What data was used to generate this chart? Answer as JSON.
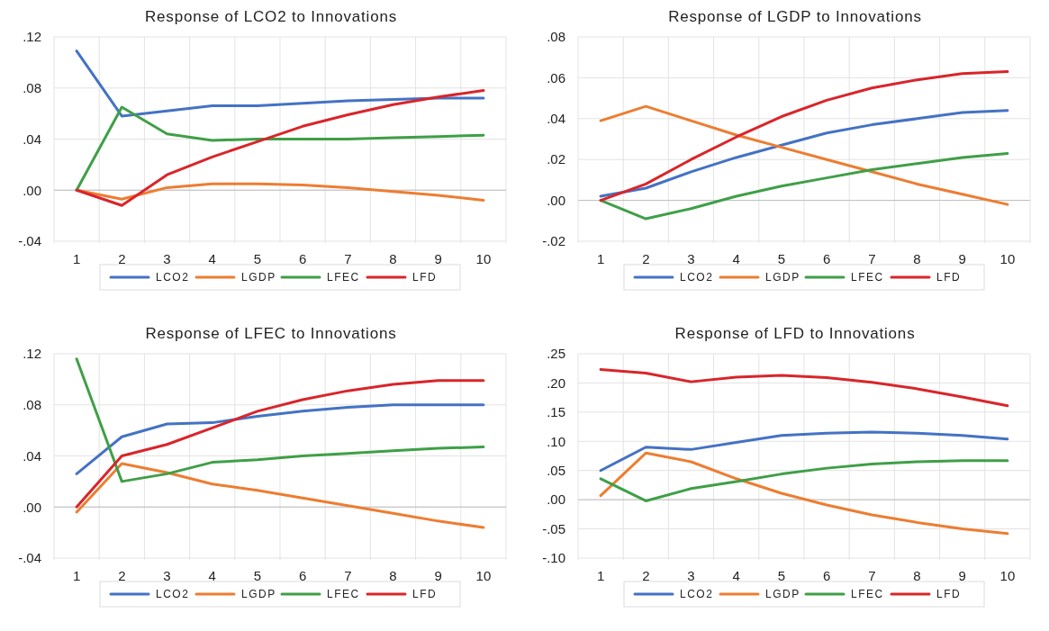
{
  "chart_data": [
    {
      "type": "line",
      "title": "Response of LCO2 to Innovations",
      "categories": [
        "1",
        "2",
        "3",
        "4",
        "5",
        "6",
        "7",
        "8",
        "9",
        "10"
      ],
      "ylim": [
        -0.04,
        0.12
      ],
      "yticks": [
        {
          "value": -0.04,
          "label": "-.04"
        },
        {
          "value": 0,
          "label": ".00"
        },
        {
          "value": 0.04,
          "label": ".04"
        },
        {
          "value": 0.08,
          "label": ".08"
        },
        {
          "value": 0.12,
          "label": ".12"
        }
      ],
      "grid": true,
      "legend": "bottom",
      "series": [
        {
          "name": "LCO2",
          "color": "#4472c4",
          "values": [
            0.109,
            0.058,
            0.062,
            0.066,
            0.066,
            0.068,
            0.07,
            0.071,
            0.072,
            0.072
          ]
        },
        {
          "name": "LGDP",
          "color": "#ed7d31",
          "values": [
            0,
            -0.007,
            0.002,
            0.005,
            0.005,
            0.004,
            0.002,
            -0.001,
            -0.004,
            -0.008
          ]
        },
        {
          "name": "LFEC",
          "color": "#3f9f47",
          "values": [
            0,
            0.065,
            0.044,
            0.039,
            0.04,
            0.04,
            0.04,
            0.041,
            0.042,
            0.043
          ]
        },
        {
          "name": "LFD",
          "color": "#d9252a",
          "values": [
            0,
            -0.012,
            0.012,
            0.026,
            0.038,
            0.05,
            0.059,
            0.067,
            0.073,
            0.078
          ]
        }
      ]
    },
    {
      "type": "line",
      "title": "Response of LGDP to Innovations",
      "categories": [
        "1",
        "2",
        "3",
        "4",
        "5",
        "6",
        "7",
        "8",
        "9",
        "10"
      ],
      "ylim": [
        -0.02,
        0.08
      ],
      "yticks": [
        {
          "value": -0.02,
          "label": "-.02"
        },
        {
          "value": 0,
          "label": ".00"
        },
        {
          "value": 0.02,
          "label": ".02"
        },
        {
          "value": 0.04,
          "label": ".04"
        },
        {
          "value": 0.06,
          "label": ".06"
        },
        {
          "value": 0.08,
          "label": ".08"
        }
      ],
      "grid": true,
      "legend": "bottom",
      "series": [
        {
          "name": "LCO2",
          "color": "#4472c4",
          "values": [
            0.002,
            0.006,
            0.014,
            0.021,
            0.027,
            0.033,
            0.037,
            0.04,
            0.043,
            0.044
          ]
        },
        {
          "name": "LGDP",
          "color": "#ed7d31",
          "values": [
            0.039,
            0.046,
            0.039,
            0.032,
            0.026,
            0.02,
            0.014,
            0.008,
            0.003,
            -0.002
          ]
        },
        {
          "name": "LFEC",
          "color": "#3f9f47",
          "values": [
            0,
            -0.009,
            -0.004,
            0.002,
            0.007,
            0.011,
            0.015,
            0.018,
            0.021,
            0.023
          ]
        },
        {
          "name": "LFD",
          "color": "#d9252a",
          "values": [
            0,
            0.008,
            0.02,
            0.031,
            0.041,
            0.049,
            0.055,
            0.059,
            0.062,
            0.063
          ]
        }
      ]
    },
    {
      "type": "line",
      "title": "Response of LFEC to Innovations",
      "categories": [
        "1",
        "2",
        "3",
        "4",
        "5",
        "6",
        "7",
        "8",
        "9",
        "10"
      ],
      "ylim": [
        -0.04,
        0.12
      ],
      "yticks": [
        {
          "value": -0.04,
          "label": "-.04"
        },
        {
          "value": 0,
          "label": ".00"
        },
        {
          "value": 0.04,
          "label": ".04"
        },
        {
          "value": 0.08,
          "label": ".08"
        },
        {
          "value": 0.12,
          "label": ".12"
        }
      ],
      "grid": true,
      "legend": "bottom",
      "series": [
        {
          "name": "LCO2",
          "color": "#4472c4",
          "values": [
            0.026,
            0.055,
            0.065,
            0.066,
            0.071,
            0.075,
            0.078,
            0.08,
            0.08,
            0.08
          ]
        },
        {
          "name": "LGDP",
          "color": "#ed7d31",
          "values": [
            -0.004,
            0.034,
            0.027,
            0.018,
            0.013,
            0.007,
            0.001,
            -0.005,
            -0.011,
            -0.016
          ]
        },
        {
          "name": "LFEC",
          "color": "#3f9f47",
          "values": [
            0.116,
            0.02,
            0.026,
            0.035,
            0.037,
            0.04,
            0.042,
            0.044,
            0.046,
            0.047
          ]
        },
        {
          "name": "LFD",
          "color": "#d9252a",
          "values": [
            0,
            0.04,
            0.049,
            0.062,
            0.075,
            0.084,
            0.091,
            0.096,
            0.099,
            0.099
          ]
        }
      ]
    },
    {
      "type": "line",
      "title": "Response of LFD to Innovations",
      "categories": [
        "1",
        "2",
        "3",
        "4",
        "5",
        "6",
        "7",
        "8",
        "9",
        "10"
      ],
      "ylim": [
        -0.1,
        0.25
      ],
      "yticks": [
        {
          "value": -0.1,
          "label": "-.10"
        },
        {
          "value": -0.05,
          "label": "-.05"
        },
        {
          "value": 0,
          "label": ".00"
        },
        {
          "value": 0.05,
          "label": ".05"
        },
        {
          "value": 0.1,
          "label": ".10"
        },
        {
          "value": 0.15,
          "label": ".15"
        },
        {
          "value": 0.2,
          "label": ".20"
        },
        {
          "value": 0.25,
          "label": ".25"
        }
      ],
      "grid": true,
      "legend": "bottom",
      "series": [
        {
          "name": "LCO2",
          "color": "#4472c4",
          "values": [
            0.05,
            0.09,
            0.086,
            0.098,
            0.11,
            0.114,
            0.116,
            0.114,
            0.11,
            0.104
          ]
        },
        {
          "name": "LGDP",
          "color": "#ed7d31",
          "values": [
            0.007,
            0.08,
            0.065,
            0.036,
            0.011,
            -0.009,
            -0.026,
            -0.039,
            -0.05,
            -0.058
          ]
        },
        {
          "name": "LFEC",
          "color": "#3f9f47",
          "values": [
            0.036,
            -0.002,
            0.019,
            0.031,
            0.044,
            0.054,
            0.061,
            0.065,
            0.067,
            0.067
          ]
        },
        {
          "name": "LFD",
          "color": "#d9252a",
          "values": [
            0.223,
            0.217,
            0.202,
            0.21,
            0.213,
            0.209,
            0.201,
            0.19,
            0.176,
            0.161
          ]
        }
      ]
    }
  ]
}
